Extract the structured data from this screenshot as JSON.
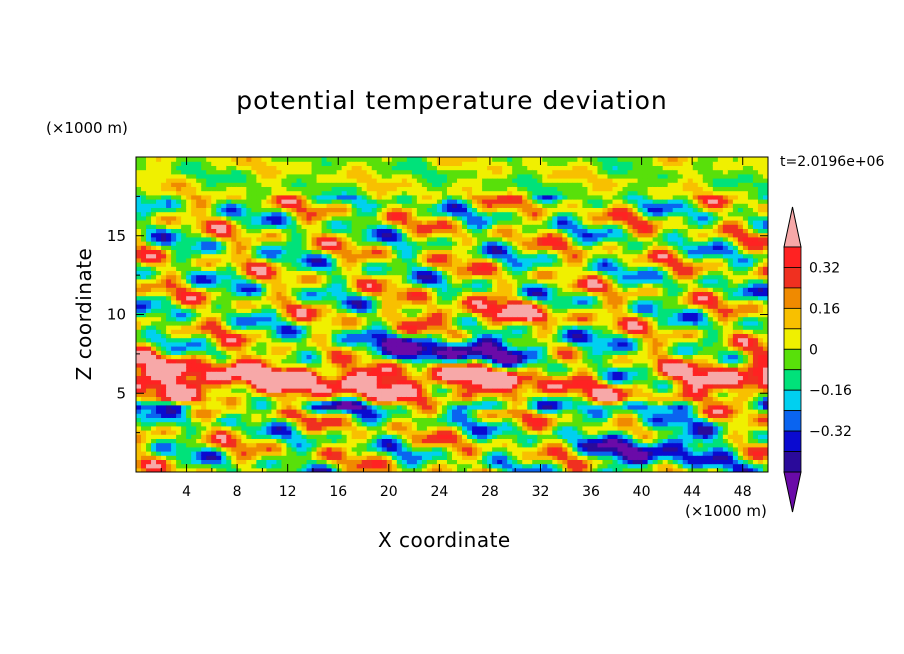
{
  "chart_data": {
    "type": "heatmap",
    "title": "potential temperature deviation",
    "xlabel": "X coordinate",
    "ylabel": "Z coordinate",
    "x_units": "(×1000 m)",
    "y_units": "(×1000 m)",
    "time_label": "t=2.0196e+06",
    "xlim": [
      0,
      50
    ],
    "ylim": [
      0,
      20
    ],
    "x_ticks": [
      "4",
      "8",
      "12",
      "16",
      "20",
      "24",
      "28",
      "32",
      "36",
      "40",
      "44",
      "48"
    ],
    "y_ticks": [
      "5",
      "10",
      "15"
    ],
    "colorbar": {
      "levels": [
        -0.48,
        -0.4,
        -0.32,
        -0.24,
        -0.16,
        -0.08,
        0,
        0.08,
        0.16,
        0.24,
        0.32,
        0.4
      ],
      "labels": [
        "0.32",
        "0.16",
        "0",
        "-0.16",
        "-0.32"
      ],
      "label_values": [
        0.32,
        0.16,
        0,
        -0.16,
        -0.32
      ],
      "colors": [
        "#6a0aa8",
        "#2a0a9a",
        "#0a0ad0",
        "#0a64f0",
        "#00d0f0",
        "#00e27a",
        "#58e00a",
        "#f0f000",
        "#f8c000",
        "#f08a00",
        "#f03020",
        "#ff2222",
        "#f7a8a8"
      ],
      "extend": "both"
    }
  }
}
